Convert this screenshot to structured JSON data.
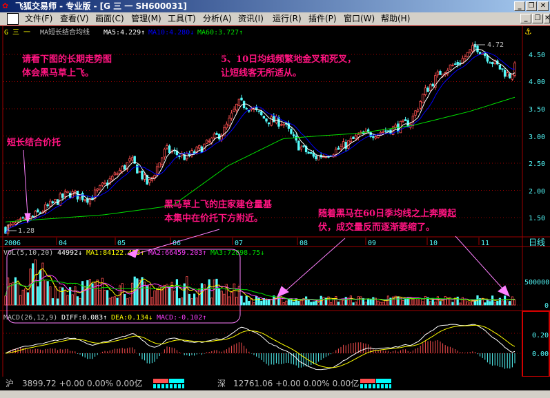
{
  "window": {
    "title": "飞狐交易师 - 专业版 - [G 三  一 SH600031]",
    "controls": [
      "_",
      "❐",
      "✕"
    ]
  },
  "menu": [
    "文件(F)",
    "查看(V)",
    "画面(C)",
    "管理(M)",
    "工具(T)",
    "分析(A)",
    "资讯(I)",
    "运行(R)",
    "插件(P)",
    "窗口(W)",
    "帮助(H)"
  ],
  "indicator_header": {
    "stock": "G 三  一",
    "name": "MA短长结合均线",
    "ma5": "MA5:4.229↑",
    "ma10": "MA10:4.280↓",
    "ma60": "MA60:3.727↑"
  },
  "price_axis": [
    "4.50",
    "4.00",
    "3.50",
    "3.00",
    "2.50",
    "2.00",
    "1.50"
  ],
  "high_label": "4.72",
  "low_label": "1.28",
  "time_axis": [
    "2006",
    "04",
    "05",
    "06",
    "07",
    "08",
    "09",
    "10",
    "11"
  ],
  "period": "日线",
  "annotations": {
    "a1_line1": "请看下图的长期走势图",
    "a1_line2": "体会黑马草上飞。",
    "a2_line1": "5、10日均线频繁地金叉和死叉，",
    "a2_line2": "让短线客无所适从。",
    "a3": "短长结合价托",
    "a4_line1": "黑马草上飞的庄家建仓量基",
    "a4_line2": "本集中在价托下方附近。",
    "a5_line1": "随着黑马在60日季均线之上奔腾起",
    "a5_line2": "伏，成交量反而逐渐萎缩了。"
  },
  "volume_header": {
    "label": "VOL(5,10,20)",
    "vol": "44992↓",
    "ma1": "MA1:84122.453↑",
    "ma2": "MA2:66459.203↑",
    "ma3": "MA3:72898.75↓"
  },
  "volume_axis": [
    "500000",
    "0"
  ],
  "macd_header": {
    "label": "MACD(26,12,9)",
    "diff": "DIFF:0.083↑",
    "dea": "DEA:0.134↓",
    "macd": "MACD:-0.102↑"
  },
  "macd_axis": [
    "0.20",
    "0.00"
  ],
  "status": {
    "sh_label": "沪",
    "sh_values": "3899.72 +0.00 0.00% 0.00亿",
    "sz_label": "深",
    "sz_values": "12761.06 +0.00 0.00% 0.00亿"
  },
  "colors": {
    "up": "#ff5050",
    "down": "#54fcfc",
    "ma5": "#ffffff",
    "ma10": "#0000ff",
    "ma60": "#00e000",
    "annotation": "#ff1480",
    "grid": "#a00000"
  }
}
